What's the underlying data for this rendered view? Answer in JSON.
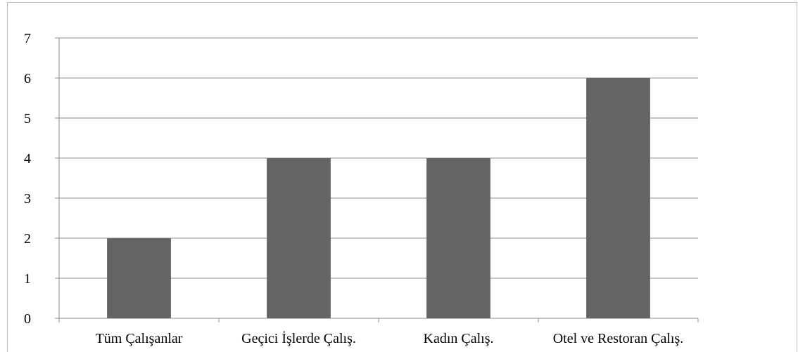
{
  "chart_data": {
    "type": "bar",
    "categories": [
      "Tüm Çalışanlar",
      "Geçici İşlerde Çalış.",
      "Kadın Çalış.",
      "Otel ve Restoran Çalış."
    ],
    "values": [
      2,
      4,
      4,
      6
    ],
    "ylim": [
      0,
      7
    ],
    "yticks": [
      0,
      1,
      2,
      3,
      4,
      5,
      6,
      7
    ],
    "grid": true,
    "bar_color": "#646464",
    "grid_color": "#8c8c8c",
    "title": "",
    "xlabel": "",
    "ylabel": ""
  }
}
